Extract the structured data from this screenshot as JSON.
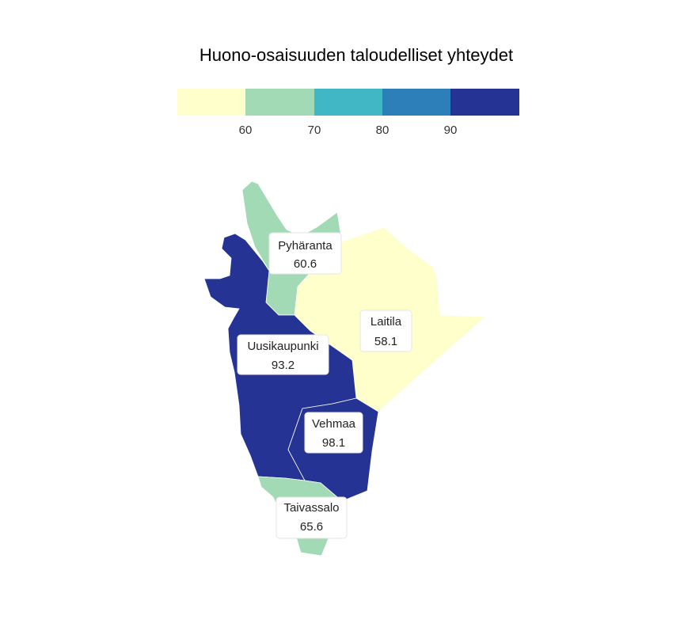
{
  "title": "Huono-osaisuuden taloudelliset yhteydet",
  "legend": {
    "colors": [
      "#ffffcc",
      "#a1dab4",
      "#41b6c4",
      "#2c7fb8",
      "#253494"
    ],
    "ticks": [
      "60",
      "70",
      "80",
      "90"
    ]
  },
  "regions": [
    {
      "name": "Pyhäranta",
      "value": "60.6",
      "color": "#a1dab4"
    },
    {
      "name": "Laitila",
      "value": "58.1",
      "color": "#ffffcc"
    },
    {
      "name": "Uusikaupunki",
      "value": "93.2",
      "color": "#253494"
    },
    {
      "name": "Vehmaa",
      "value": "98.1",
      "color": "#253494"
    },
    {
      "name": "Taivassalo",
      "value": "65.6",
      "color": "#a1dab4"
    }
  ]
}
